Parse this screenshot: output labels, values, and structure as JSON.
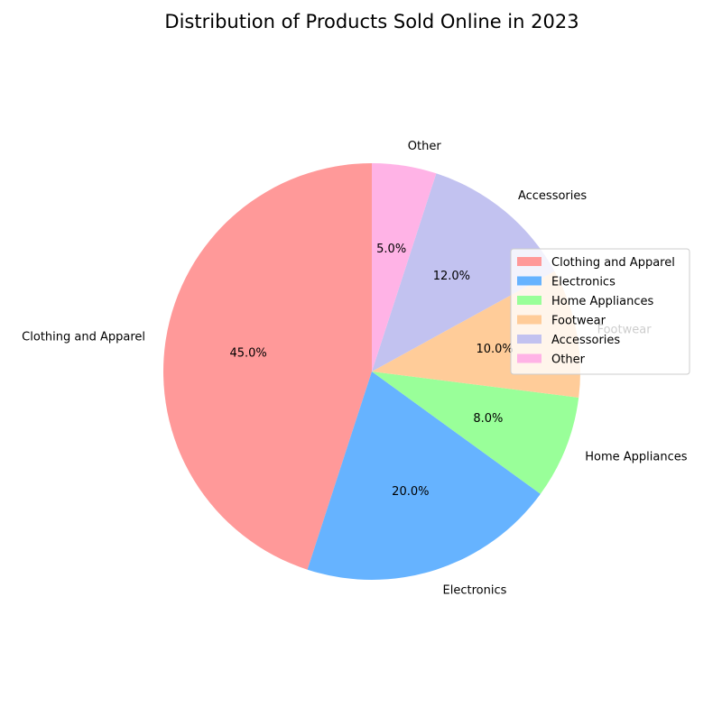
{
  "chart_data": {
    "type": "pie",
    "title": "Distribution of Products Sold Online in 2023",
    "slices": [
      {
        "label": "Clothing and Apparel",
        "value": 45.0,
        "pct_label": "45.0%",
        "color": "#ff9999"
      },
      {
        "label": "Electronics",
        "value": 20.0,
        "pct_label": "20.0%",
        "color": "#66b3ff"
      },
      {
        "label": "Home Appliances",
        "value": 8.0,
        "pct_label": "8.0%",
        "color": "#99ff99"
      },
      {
        "label": "Footwear",
        "value": 10.0,
        "pct_label": "10.0%",
        "color": "#ffcc99"
      },
      {
        "label": "Accessories",
        "value": 12.0,
        "pct_label": "12.0%",
        "color": "#c2c2f0"
      },
      {
        "label": "Other",
        "value": 5.0,
        "pct_label": "5.0%",
        "color": "#ffb3e6"
      }
    ],
    "start_angle_deg": 90,
    "direction": "counterclockwise",
    "legend_placement": "center-right"
  }
}
